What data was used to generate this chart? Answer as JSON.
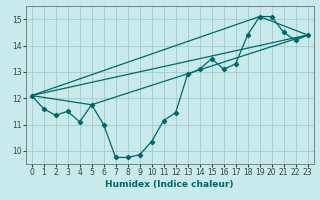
{
  "xlabel": "Humidex (Indice chaleur)",
  "ylabel": "",
  "background_color": "#c8eaea",
  "grid_color": "#a8d0d0",
  "line_color": "#006868",
  "xlim": [
    -0.5,
    23.5
  ],
  "ylim": [
    9.5,
    15.5
  ],
  "xticks": [
    0,
    1,
    2,
    3,
    4,
    5,
    6,
    7,
    8,
    9,
    10,
    11,
    12,
    13,
    14,
    15,
    16,
    17,
    18,
    19,
    20,
    21,
    22,
    23
  ],
  "yticks": [
    10,
    11,
    12,
    13,
    14,
    15
  ],
  "line1_x": [
    0,
    1,
    2,
    3,
    4,
    5,
    6,
    7,
    8,
    9,
    10,
    11,
    12,
    13,
    14,
    15,
    16,
    17,
    18,
    19,
    20,
    21,
    22,
    23
  ],
  "line1_y": [
    12.1,
    11.6,
    11.35,
    11.5,
    11.1,
    11.75,
    11.0,
    9.75,
    9.75,
    9.85,
    10.35,
    11.15,
    11.45,
    12.9,
    13.1,
    13.5,
    13.1,
    13.3,
    14.4,
    15.1,
    15.1,
    14.5,
    14.2,
    14.4
  ],
  "line2_x": [
    0,
    23
  ],
  "line2_y": [
    12.1,
    14.4
  ],
  "line3_x": [
    0,
    19,
    23
  ],
  "line3_y": [
    12.1,
    15.1,
    14.4
  ],
  "line4_x": [
    0,
    5,
    23
  ],
  "line4_y": [
    12.1,
    11.75,
    14.4
  ]
}
